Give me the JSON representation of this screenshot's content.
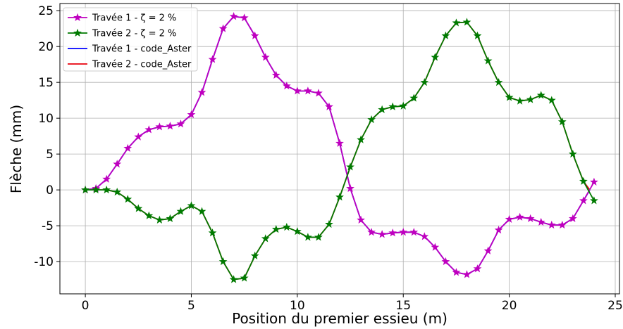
{
  "chart_data": {
    "type": "line",
    "xlabel": "Position du premier essieu (m)",
    "ylabel": "Flèche (mm)",
    "xlim": [
      -1.2,
      25.2
    ],
    "ylim": [
      -14.5,
      26
    ],
    "xticks": [
      0,
      5,
      10,
      15,
      20,
      25
    ],
    "yticks": [
      -10,
      -5,
      0,
      5,
      10,
      15,
      20,
      25
    ],
    "grid": true,
    "legend_position": "top-left",
    "series": [
      {
        "name": "Travée 1 - ζ = 2 %",
        "color": "#bf00bf",
        "marker": "star",
        "line": true,
        "x": [
          0,
          0.5,
          1,
          1.5,
          2,
          2.5,
          3,
          3.5,
          4,
          4.5,
          5,
          5.5,
          6,
          6.5,
          7,
          7.5,
          8,
          8.5,
          9,
          9.5,
          10,
          10.5,
          11,
          11.5,
          12,
          12.5,
          13,
          13.5,
          14,
          14.5,
          15,
          15.5,
          16,
          16.5,
          17,
          17.5,
          18,
          18.5,
          19,
          19.5,
          20,
          20.5,
          21,
          21.5,
          22,
          22.5,
          23,
          23.5,
          24
        ],
        "y": [
          0,
          0.2,
          1.5,
          3.6,
          5.8,
          7.4,
          8.4,
          8.8,
          8.9,
          9.2,
          10.5,
          13.6,
          18.2,
          22.5,
          24.2,
          24.0,
          21.5,
          18.5,
          16.0,
          14.5,
          13.8,
          13.8,
          13.5,
          11.6,
          6.5,
          0.2,
          -4.2,
          -5.9,
          -6.2,
          -6.0,
          -5.9,
          -5.9,
          -6.5,
          -8.0,
          -10.0,
          -11.5,
          -11.8,
          -11.0,
          -8.5,
          -5.6,
          -4.1,
          -3.8,
          -4.0,
          -4.5,
          -4.9,
          -4.9,
          -4.0,
          -1.5,
          1.1
        ]
      },
      {
        "name": "Travée 2 - ζ = 2 %",
        "color": "#007a00",
        "marker": "star",
        "line": true,
        "x": [
          0,
          0.5,
          1,
          1.5,
          2,
          2.5,
          3,
          3.5,
          4,
          4.5,
          5,
          5.5,
          6,
          6.5,
          7,
          7.5,
          8,
          8.5,
          9,
          9.5,
          10,
          10.5,
          11,
          11.5,
          12,
          12.5,
          13,
          13.5,
          14,
          14.5,
          15,
          15.5,
          16,
          16.5,
          17,
          17.5,
          18,
          18.5,
          19,
          19.5,
          20,
          20.5,
          21,
          21.5,
          22,
          22.5,
          23,
          23.5,
          24
        ],
        "y": [
          0,
          0,
          0,
          -0.3,
          -1.3,
          -2.6,
          -3.6,
          -4.2,
          -4.0,
          -3.0,
          -2.2,
          -3.0,
          -6.0,
          -10.0,
          -12.5,
          -12.3,
          -9.2,
          -6.8,
          -5.5,
          -5.2,
          -5.8,
          -6.6,
          -6.6,
          -4.8,
          -1.0,
          3.2,
          7.0,
          9.8,
          11.2,
          11.6,
          11.7,
          12.8,
          15.0,
          18.5,
          21.5,
          23.3,
          23.4,
          21.5,
          18.0,
          15.0,
          12.9,
          12.4,
          12.6,
          13.2,
          12.5,
          9.5,
          5.0,
          1.2,
          -1.5
        ]
      },
      {
        "name": "Travée 1 - code_Aster",
        "color": "#0000ff",
        "marker": "none",
        "line": true,
        "x": [
          0,
          0.5,
          1,
          1.5,
          2,
          2.5,
          3,
          3.5,
          4,
          4.5,
          5,
          5.5,
          6,
          6.5,
          7,
          7.5,
          8,
          8.5,
          9,
          9.5,
          10,
          10.5,
          11,
          11.5,
          12,
          12.5,
          13,
          13.5,
          14,
          14.5,
          15,
          15.5,
          16,
          16.5,
          17,
          17.5,
          18,
          18.5,
          19,
          19.5,
          20,
          20.5,
          21,
          21.5,
          22,
          22.5,
          23,
          23.5,
          23.8
        ],
        "y": [
          0,
          0.2,
          1.5,
          3.6,
          5.8,
          7.4,
          8.4,
          8.8,
          8.9,
          9.2,
          10.5,
          13.6,
          18.2,
          22.5,
          24.2,
          24.0,
          21.5,
          18.5,
          16.0,
          14.5,
          13.8,
          13.8,
          13.5,
          11.6,
          6.5,
          0.2,
          -4.2,
          -5.9,
          -6.2,
          -6.0,
          -5.9,
          -5.9,
          -6.5,
          -8.0,
          -10.0,
          -11.5,
          -11.8,
          -11.0,
          -8.5,
          -5.6,
          -4.1,
          -3.8,
          -4.0,
          -4.5,
          -4.9,
          -4.9,
          -4.0,
          -1.5,
          0
        ]
      },
      {
        "name": "Travée 2 - code_Aster",
        "color": "#e8000b",
        "marker": "none",
        "line": true,
        "x": [
          0,
          0.5,
          1,
          1.5,
          2,
          2.5,
          3,
          3.5,
          4,
          4.5,
          5,
          5.5,
          6,
          6.5,
          7,
          7.5,
          8,
          8.5,
          9,
          9.5,
          10,
          10.5,
          11,
          11.5,
          12,
          12.5,
          13,
          13.5,
          14,
          14.5,
          15,
          15.5,
          16,
          16.5,
          17,
          17.5,
          18,
          18.5,
          19,
          19.5,
          20,
          20.5,
          21,
          21.5,
          22,
          22.5,
          23,
          23.5,
          23.8
        ],
        "y": [
          0,
          0,
          0,
          -0.3,
          -1.3,
          -2.6,
          -3.6,
          -4.2,
          -4.0,
          -3.0,
          -2.2,
          -3.0,
          -6.0,
          -10.0,
          -12.5,
          -12.3,
          -9.2,
          -6.8,
          -5.5,
          -5.2,
          -5.8,
          -6.6,
          -6.6,
          -4.8,
          -1.0,
          3.2,
          7.0,
          9.8,
          11.2,
          11.6,
          11.7,
          12.8,
          15.0,
          18.5,
          21.5,
          23.3,
          23.4,
          21.5,
          18.0,
          15.0,
          12.9,
          12.4,
          12.6,
          13.2,
          12.5,
          9.5,
          5.0,
          1.2,
          0
        ]
      }
    ]
  }
}
